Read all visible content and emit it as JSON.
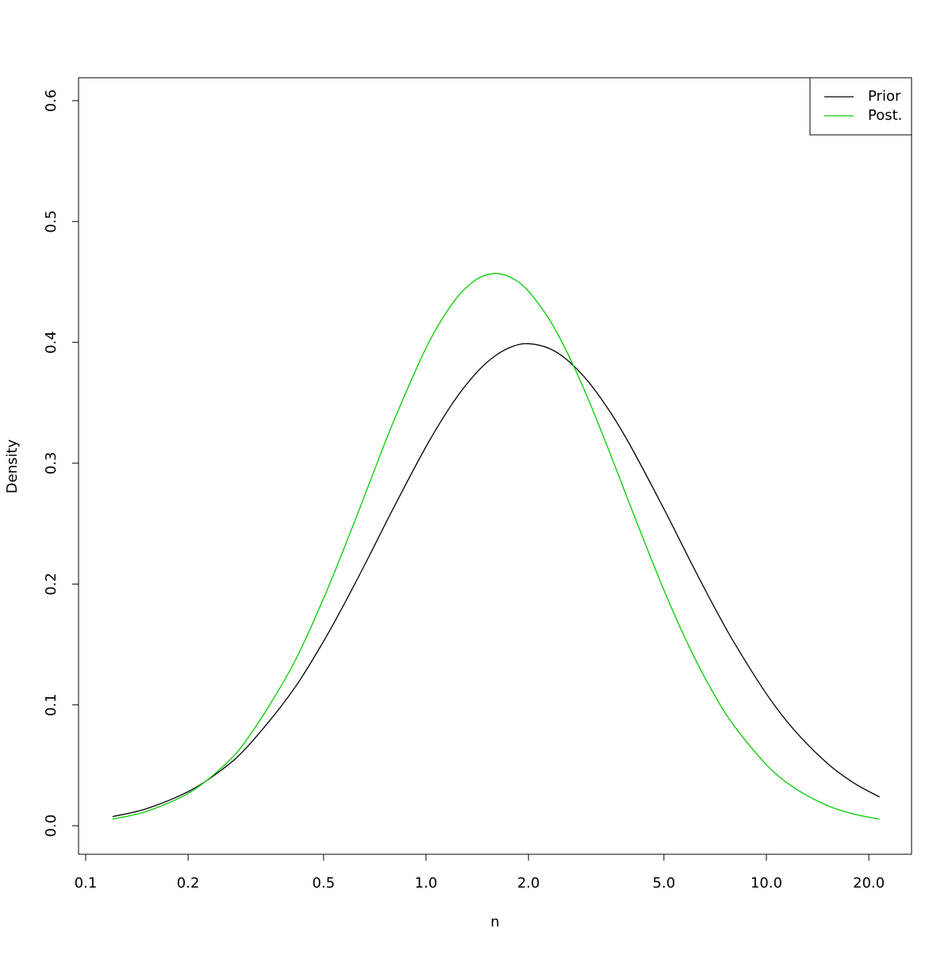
{
  "chart_data": {
    "type": "line",
    "x_label": "n",
    "y_label": "Density",
    "xscale": "log",
    "x": [
      0.12,
      0.15,
      0.2,
      0.25,
      0.3,
      0.4,
      0.5,
      0.6,
      0.7,
      0.8,
      1.0,
      1.2,
      1.4,
      1.6,
      1.8,
      2.0,
      2.3,
      2.6,
      3.0,
      3.5,
      4,
      5,
      6,
      7,
      8,
      10,
      12,
      15,
      18,
      21.5
    ],
    "series": [
      {
        "name": "Prior",
        "color": "#000000",
        "values": [
          0.0076,
          0.0139,
          0.0282,
          0.0459,
          0.066,
          0.1093,
          0.1526,
          0.1933,
          0.2299,
          0.2622,
          0.3137,
          0.3501,
          0.3743,
          0.3891,
          0.3967,
          0.3989,
          0.395,
          0.3854,
          0.3674,
          0.3411,
          0.3137,
          0.2622,
          0.2181,
          0.182,
          0.1526,
          0.1092,
          0.0801,
          0.0524,
          0.0357,
          0.0238
        ]
      },
      {
        "name": "Post.",
        "color": "#00cd00",
        "values": [
          0.0056,
          0.0116,
          0.0268,
          0.0477,
          0.0727,
          0.1295,
          0.1881,
          0.2431,
          0.2918,
          0.3335,
          0.3953,
          0.4328,
          0.4517,
          0.457,
          0.4528,
          0.4423,
          0.4192,
          0.3915,
          0.3527,
          0.3057,
          0.2635,
          0.195,
          0.1452,
          0.1094,
          0.0835,
          0.0505,
          0.0319,
          0.0171,
          0.0098,
          0.0055
        ]
      }
    ],
    "xlim": [
      0.0953,
      26.7
    ],
    "xticks": [
      0.1,
      0.2,
      0.5,
      {
        "value": 1,
        "label": "1.0"
      },
      {
        "value": 2,
        "label": "2.0"
      },
      {
        "value": 5,
        "label": "5.0"
      },
      {
        "value": 10,
        "label": "10.0"
      },
      {
        "value": 20,
        "label": "20.0"
      }
    ],
    "ylim": [
      -0.0236,
      0.619
    ],
    "yticks": [
      {
        "value": 0,
        "label": "0.0"
      },
      0.1,
      0.2,
      0.3,
      0.4,
      0.5,
      0.6
    ],
    "legend": "top-right"
  }
}
